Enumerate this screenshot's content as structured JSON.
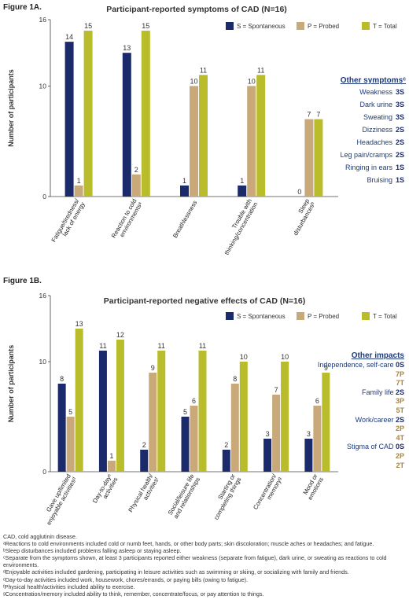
{
  "figure_a": {
    "label": "Figure 1A.",
    "title": "Participant-reported symptoms of CAD (N=16)",
    "other_title": "Other symptomsᶜ",
    "other_items": [
      {
        "label": "Weakness",
        "count": "3S"
      },
      {
        "label": "Dark urine",
        "count": "3S"
      },
      {
        "label": "Sweating",
        "count": "3S"
      },
      {
        "label": "Dizziness",
        "count": "2S"
      },
      {
        "label": "Headaches",
        "count": "2S"
      },
      {
        "label": "Leg pain/cramps",
        "count": "2S"
      },
      {
        "label": "Ringing in ears",
        "count": "1S"
      },
      {
        "label": "Bruising",
        "count": "1S"
      }
    ]
  },
  "figure_b": {
    "label": "Figure 1B.",
    "title": "Participant-reported negative effects of CAD (N=16)",
    "other_title": "Other impacts",
    "other_items": [
      {
        "label": "Independence, self-care",
        "counts": [
          "0S",
          "7P",
          "7T"
        ]
      },
      {
        "label": "Family life",
        "counts": [
          "2S",
          "3P",
          "5T"
        ]
      },
      {
        "label": "Work/career",
        "counts": [
          "2S",
          "2P",
          "4T"
        ]
      },
      {
        "label": "Stigma of CAD",
        "counts": [
          "0S",
          "2P",
          "2T"
        ]
      }
    ]
  },
  "colors": {
    "S": "#1b2a6b",
    "P": "#c9a97a",
    "T": "#b9bc2b",
    "P_text": "#a8843e"
  },
  "chart_data": [
    {
      "type": "bar",
      "title": "Participant-reported symptoms of CAD (N=16)",
      "ylabel": "Number of participants",
      "xlabel": "",
      "ylim": [
        0,
        16
      ],
      "yticks": [
        "0",
        "10",
        "16"
      ],
      "categories": [
        "Fatigue/tiredness/\nlack of energy",
        "Reaction to cold\nenvironmentsᵃ",
        "Breathlessness",
        "Trouble with\nthinking/concentration",
        "Sleep\ndisturbancesᵇ"
      ],
      "series": [
        {
          "name": "S = Spontaneous",
          "values": [
            14,
            13,
            1,
            1,
            0
          ]
        },
        {
          "name": "P = Probed",
          "values": [
            1,
            2,
            10,
            10,
            7
          ]
        },
        {
          "name": "T = Total",
          "values": [
            15,
            15,
            11,
            11,
            7
          ]
        }
      ],
      "value_labels": [
        [
          "14",
          "13",
          "1",
          "1",
          "0"
        ],
        [
          "1",
          "2",
          "10",
          "10",
          "7"
        ],
        [
          "15",
          "15",
          "11",
          "11",
          "7"
        ]
      ],
      "legend": "top-right"
    },
    {
      "type": "bar",
      "title": "Participant-reported negative effects of CAD (N=16)",
      "ylabel": "Number of participants",
      "xlabel": "",
      "ylim": [
        0,
        16
      ],
      "yticks": [
        "0",
        "10",
        "16"
      ],
      "categories": [
        "Gave up/limited\nenjoyable activitiesᵈ",
        "Day-to-dayᵉ\nactivities",
        "Physical health/\nactivitiesᶠ",
        "Social/leisure life\nand relationships",
        "Starting or\ncompleting things",
        "Concentration/\nmemoryᵍ",
        "Mood or\nemotions"
      ],
      "series": [
        {
          "name": "S = Spontaneous",
          "values": [
            8,
            11,
            2,
            5,
            2,
            3,
            3
          ]
        },
        {
          "name": "P = Probed",
          "values": [
            5,
            1,
            9,
            6,
            8,
            7,
            6
          ]
        },
        {
          "name": "T = Total",
          "values": [
            13,
            12,
            11,
            11,
            10,
            10,
            9
          ]
        }
      ],
      "value_labels": [
        [
          "8",
          "11",
          "2",
          "5",
          "2",
          "3",
          "3"
        ],
        [
          "5",
          "1",
          "9",
          "6",
          "8",
          "7",
          "6"
        ],
        [
          "13",
          "12",
          "11",
          "11",
          "10",
          "10",
          "9"
        ]
      ],
      "legend": "top-right"
    }
  ],
  "footnotes": [
    "CAD, cold agglutinin disease.",
    "ᵃReactions to cold environments included cold or numb feet, hands, or other body parts; skin discoloration; muscle aches or headaches; and fatigue.",
    "ᵇSleep disturbances included problems falling asleep or staying asleep.",
    "ᶜSeparate from the symptoms shown, at least 3 participants reported either weakness (separate from fatigue), dark urine, or sweating as reactions to cold environments.",
    "ᵈEnjoyable activities included gardening, participating in leisure activities such as swimming or skiing, or socializing with family and friends.",
    "ᵉDay-to-day activities included work, housework, chores/errands, or paying bills (owing to fatigue).",
    "ᶠPhysical health/activities included ability to exercise.",
    "ᵍConcentration/memory included ability to think, remember, concentrate/focus, or pay attention to things."
  ]
}
